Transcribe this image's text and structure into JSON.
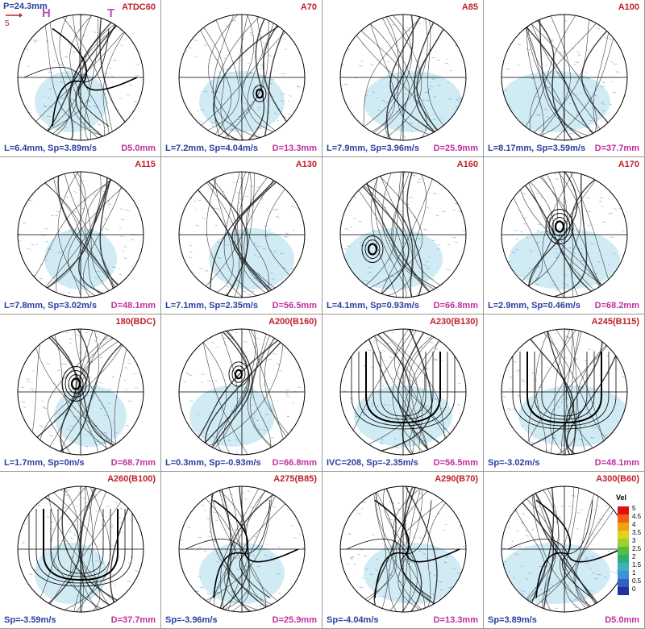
{
  "figure": {
    "header": {
      "pixel_scale": "P=24.3mm",
      "vector_scale_value": "5",
      "marker_left": "H",
      "marker_right": "T"
    },
    "panels": [
      {
        "crank": "ATDC60",
        "stats": "L=6.4mm, Sp=3.89m/s",
        "depth": "D5.0mm",
        "vortex": "center"
      },
      {
        "crank": "A70",
        "stats": "L=7.2mm, Sp=4.04m/s",
        "depth": "D=13.3mm",
        "vortex": "small-right"
      },
      {
        "crank": "A85",
        "stats": "L=7.9mm, Sp=3.96m/s",
        "depth": "D=25.9mm",
        "vortex": "none"
      },
      {
        "crank": "A100",
        "stats": "L=8.17mm, Sp=3.59m/s",
        "depth": "D=37.7mm",
        "vortex": "none"
      },
      {
        "crank": "A115",
        "stats": "L=7.8mm, Sp=3.02m/s",
        "depth": "D=48.1mm",
        "vortex": "none"
      },
      {
        "crank": "A130",
        "stats": "L=7.1mm, Sp=2.35m/s",
        "depth": "D=56.5mm",
        "vortex": "none"
      },
      {
        "crank": "A160",
        "stats": "L=4.1mm, Sp=0.93m/s",
        "depth": "D=66.8mm",
        "vortex": "lower-left"
      },
      {
        "crank": "A170",
        "stats": "L=2.9mm, Sp=0.46m/s",
        "depth": "D=68.2mm",
        "vortex": "upper-center"
      },
      {
        "crank": "180(BDC)",
        "stats": "L=1.7mm, Sp=0m/s",
        "depth": "D=68.7mm",
        "vortex": "upper-center"
      },
      {
        "crank": "A200(B160)",
        "stats": "L=0.3mm, Sp=-0.93m/s",
        "depth": "D=66.8mm",
        "vortex": "upper-center-small"
      },
      {
        "crank": "A230(B130)",
        "stats": "IVC=208, Sp=-2.35m/s",
        "depth": "D=56.5mm",
        "vortex": "u-shape"
      },
      {
        "crank": "A245(B115)",
        "stats": "Sp=-3.02m/s",
        "depth": "D=48.1mm",
        "vortex": "u-shape"
      },
      {
        "crank": "A260(B100)",
        "stats": "Sp=-3.59m/s",
        "depth": "D=37.7mm",
        "vortex": "u-shape"
      },
      {
        "crank": "A275(B85)",
        "stats": "Sp=-3.96m/s",
        "depth": "D=25.9mm",
        "vortex": "swirl"
      },
      {
        "crank": "A290(B70)",
        "stats": "Sp=-4.04m/s",
        "depth": "D=13.3mm",
        "vortex": "swirl"
      },
      {
        "crank": "A300(B60)",
        "stats": "Sp=3.89m/s",
        "depth": "D5.0mm",
        "vortex": "swirl-dense"
      }
    ],
    "colorbar": {
      "title": "Vel",
      "ticks": [
        "5",
        "4.5",
        "4",
        "3.5",
        "3",
        "2.5",
        "2",
        "1.5",
        "1",
        "0.5",
        "0"
      ],
      "colors": [
        "#e01010",
        "#f06010",
        "#f0a010",
        "#e0d020",
        "#a0d030",
        "#50c040",
        "#30b070",
        "#40b0c0",
        "#4090d8",
        "#3060c0",
        "#2030a0"
      ]
    },
    "colors": {
      "crank_label": "#c0202a",
      "stats_label": "#2a40a0",
      "depth_label": "#c030a0",
      "vector_fill": "#5bb8d8",
      "streamline": "#111111"
    }
  }
}
